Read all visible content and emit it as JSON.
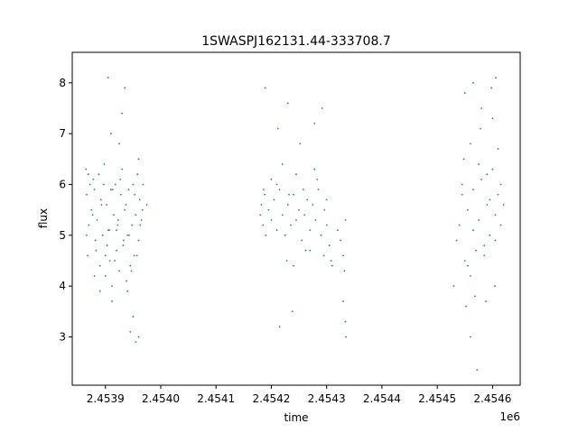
{
  "chart_data": {
    "type": "scatter",
    "title": "1SWASPJ162131.44-333708.7",
    "xlabel": "time",
    "ylabel": "flux",
    "x_offset_label": "1e6",
    "xlim": [
      2453840,
      2454650
    ],
    "ylim": [
      2.05,
      8.6
    ],
    "x_ticks": [
      2453900,
      2454000,
      2454100,
      2454200,
      2454300,
      2454400,
      2454500,
      2454600
    ],
    "x_tick_labels": [
      "2.4539",
      "2.4540",
      "2.4541",
      "2.4542",
      "2.4543",
      "2.4544",
      "2.4545",
      "2.4546"
    ],
    "y_ticks": [
      3,
      4,
      5,
      6,
      7,
      8
    ],
    "y_tick_labels": [
      "3",
      "4",
      "5",
      "6",
      "7",
      "8"
    ],
    "grid": false,
    "marker_color": "#1f77b4",
    "series": [
      {
        "x": [
          2453865,
          2453866,
          2453868,
          2453870,
          2453872,
          2453875,
          2453878,
          2453880,
          2453882,
          2453885,
          2453888,
          2453890,
          2453892,
          2453895,
          2453898,
          2453900,
          2453902,
          2453905,
          2453908,
          2453910,
          2453912,
          2453915,
          2453918,
          2453920,
          2453922,
          2453925,
          2453928,
          2453930,
          2453932,
          2453935,
          2453938,
          2453940,
          2453942,
          2453945,
          2453948,
          2453950,
          2453952,
          2453955,
          2453958,
          2453960,
          2453962,
          2453965,
          2453968,
          2453975,
          2453866,
          2453869,
          2453877,
          2453883,
          2453893,
          2453897,
          2453903,
          2453907,
          2453913,
          2453917,
          2453923,
          2453927,
          2453933,
          2453937,
          2453943,
          2453947,
          2453953,
          2453957,
          2453963,
          2453967,
          2453880,
          2453890,
          2453900,
          2453910,
          2453920,
          2453930,
          2453940,
          2453950,
          2453960,
          2453905,
          2453925,
          2453945,
          2453955,
          2453960,
          2453935,
          2453912
        ],
        "y": [
          6.3,
          5.8,
          4.6,
          5.2,
          6.0,
          5.5,
          6.1,
          5.9,
          4.9,
          5.3,
          6.2,
          4.4,
          5.7,
          5.0,
          6.4,
          4.2,
          5.6,
          5.1,
          4.5,
          5.9,
          4.0,
          5.4,
          6.0,
          4.7,
          5.2,
          4.3,
          5.8,
          6.3,
          4.8,
          5.5,
          4.1,
          5.0,
          5.9,
          4.4,
          5.2,
          6.0,
          4.6,
          5.4,
          6.2,
          4.9,
          5.7,
          5.3,
          6.0,
          5.6,
          5.0,
          6.2,
          5.4,
          4.7,
          5.6,
          6.0,
          4.8,
          5.1,
          5.9,
          4.5,
          5.3,
          6.1,
          4.9,
          5.6,
          5.0,
          4.3,
          5.8,
          4.6,
          5.2,
          5.5,
          4.2,
          3.9,
          4.6,
          7.0,
          5.1,
          7.4,
          3.9,
          3.4,
          6.5,
          8.1,
          6.8,
          3.1,
          2.9,
          3.0,
          7.9,
          3.7
        ]
      },
      {
        "x": [
          2454180,
          2454182,
          2454185,
          2454188,
          2454190,
          2454195,
          2454200,
          2454205,
          2454210,
          2454215,
          2454220,
          2454225,
          2454230,
          2454235,
          2454240,
          2454245,
          2454250,
          2454255,
          2454260,
          2454265,
          2454270,
          2454275,
          2454280,
          2454285,
          2454290,
          2454295,
          2454300,
          2454305,
          2454310,
          2454320,
          2454325,
          2454330,
          2454332,
          2454334,
          2454210,
          2454220,
          2454232,
          2454245,
          2454258,
          2454270,
          2454283,
          2454296,
          2454308,
          2454186,
          2454200,
          2454228,
          2454240,
          2454262,
          2454278,
          2454300,
          2454189,
          2454212,
          2454230,
          2454252,
          2454278,
          2454292,
          2454330,
          2454334,
          2454335,
          2454215,
          2454238
        ],
        "y": [
          5.4,
          5.6,
          5.2,
          5.8,
          5.0,
          5.5,
          5.3,
          5.7,
          5.1,
          5.9,
          5.4,
          5.0,
          5.6,
          5.2,
          5.8,
          5.3,
          5.5,
          4.9,
          5.4,
          5.7,
          5.1,
          5.6,
          5.3,
          5.9,
          5.0,
          4.6,
          5.2,
          4.8,
          4.4,
          5.1,
          4.9,
          4.6,
          4.3,
          5.3,
          6.0,
          6.4,
          5.8,
          6.2,
          5.9,
          4.7,
          6.1,
          5.5,
          4.5,
          5.9,
          6.1,
          4.5,
          4.4,
          4.7,
          6.3,
          5.7,
          7.9,
          7.1,
          7.6,
          6.8,
          7.2,
          7.5,
          3.7,
          3.3,
          3.0,
          3.2,
          3.5
        ]
      },
      {
        "x": [
          2454535,
          2454540,
          2454545,
          2454550,
          2454555,
          2454560,
          2454565,
          2454570,
          2454575,
          2454580,
          2454585,
          2454590,
          2454595,
          2454600,
          2454605,
          2454610,
          2454615,
          2454620,
          2454530,
          2454545,
          2454555,
          2454565,
          2454575,
          2454585,
          2454595,
          2454605,
          2454615,
          2454548,
          2454560,
          2454578,
          2454590,
          2454600,
          2454610,
          2454550,
          2454565,
          2454580,
          2454598,
          2454606,
          2454552,
          2454568,
          2454588,
          2454604,
          2454560,
          2454572
        ],
        "y": [
          4.9,
          5.2,
          5.8,
          4.5,
          5.5,
          4.2,
          5.9,
          4.7,
          5.3,
          6.1,
          4.8,
          5.6,
          5.0,
          6.3,
          5.4,
          5.8,
          5.2,
          5.6,
          4.0,
          6.0,
          4.4,
          5.1,
          6.4,
          4.6,
          5.7,
          4.9,
          6.0,
          6.5,
          6.8,
          7.1,
          6.2,
          7.3,
          6.7,
          7.8,
          8.0,
          7.5,
          7.9,
          8.1,
          3.6,
          3.8,
          3.7,
          4.0,
          3.0,
          2.35
        ]
      }
    ]
  }
}
